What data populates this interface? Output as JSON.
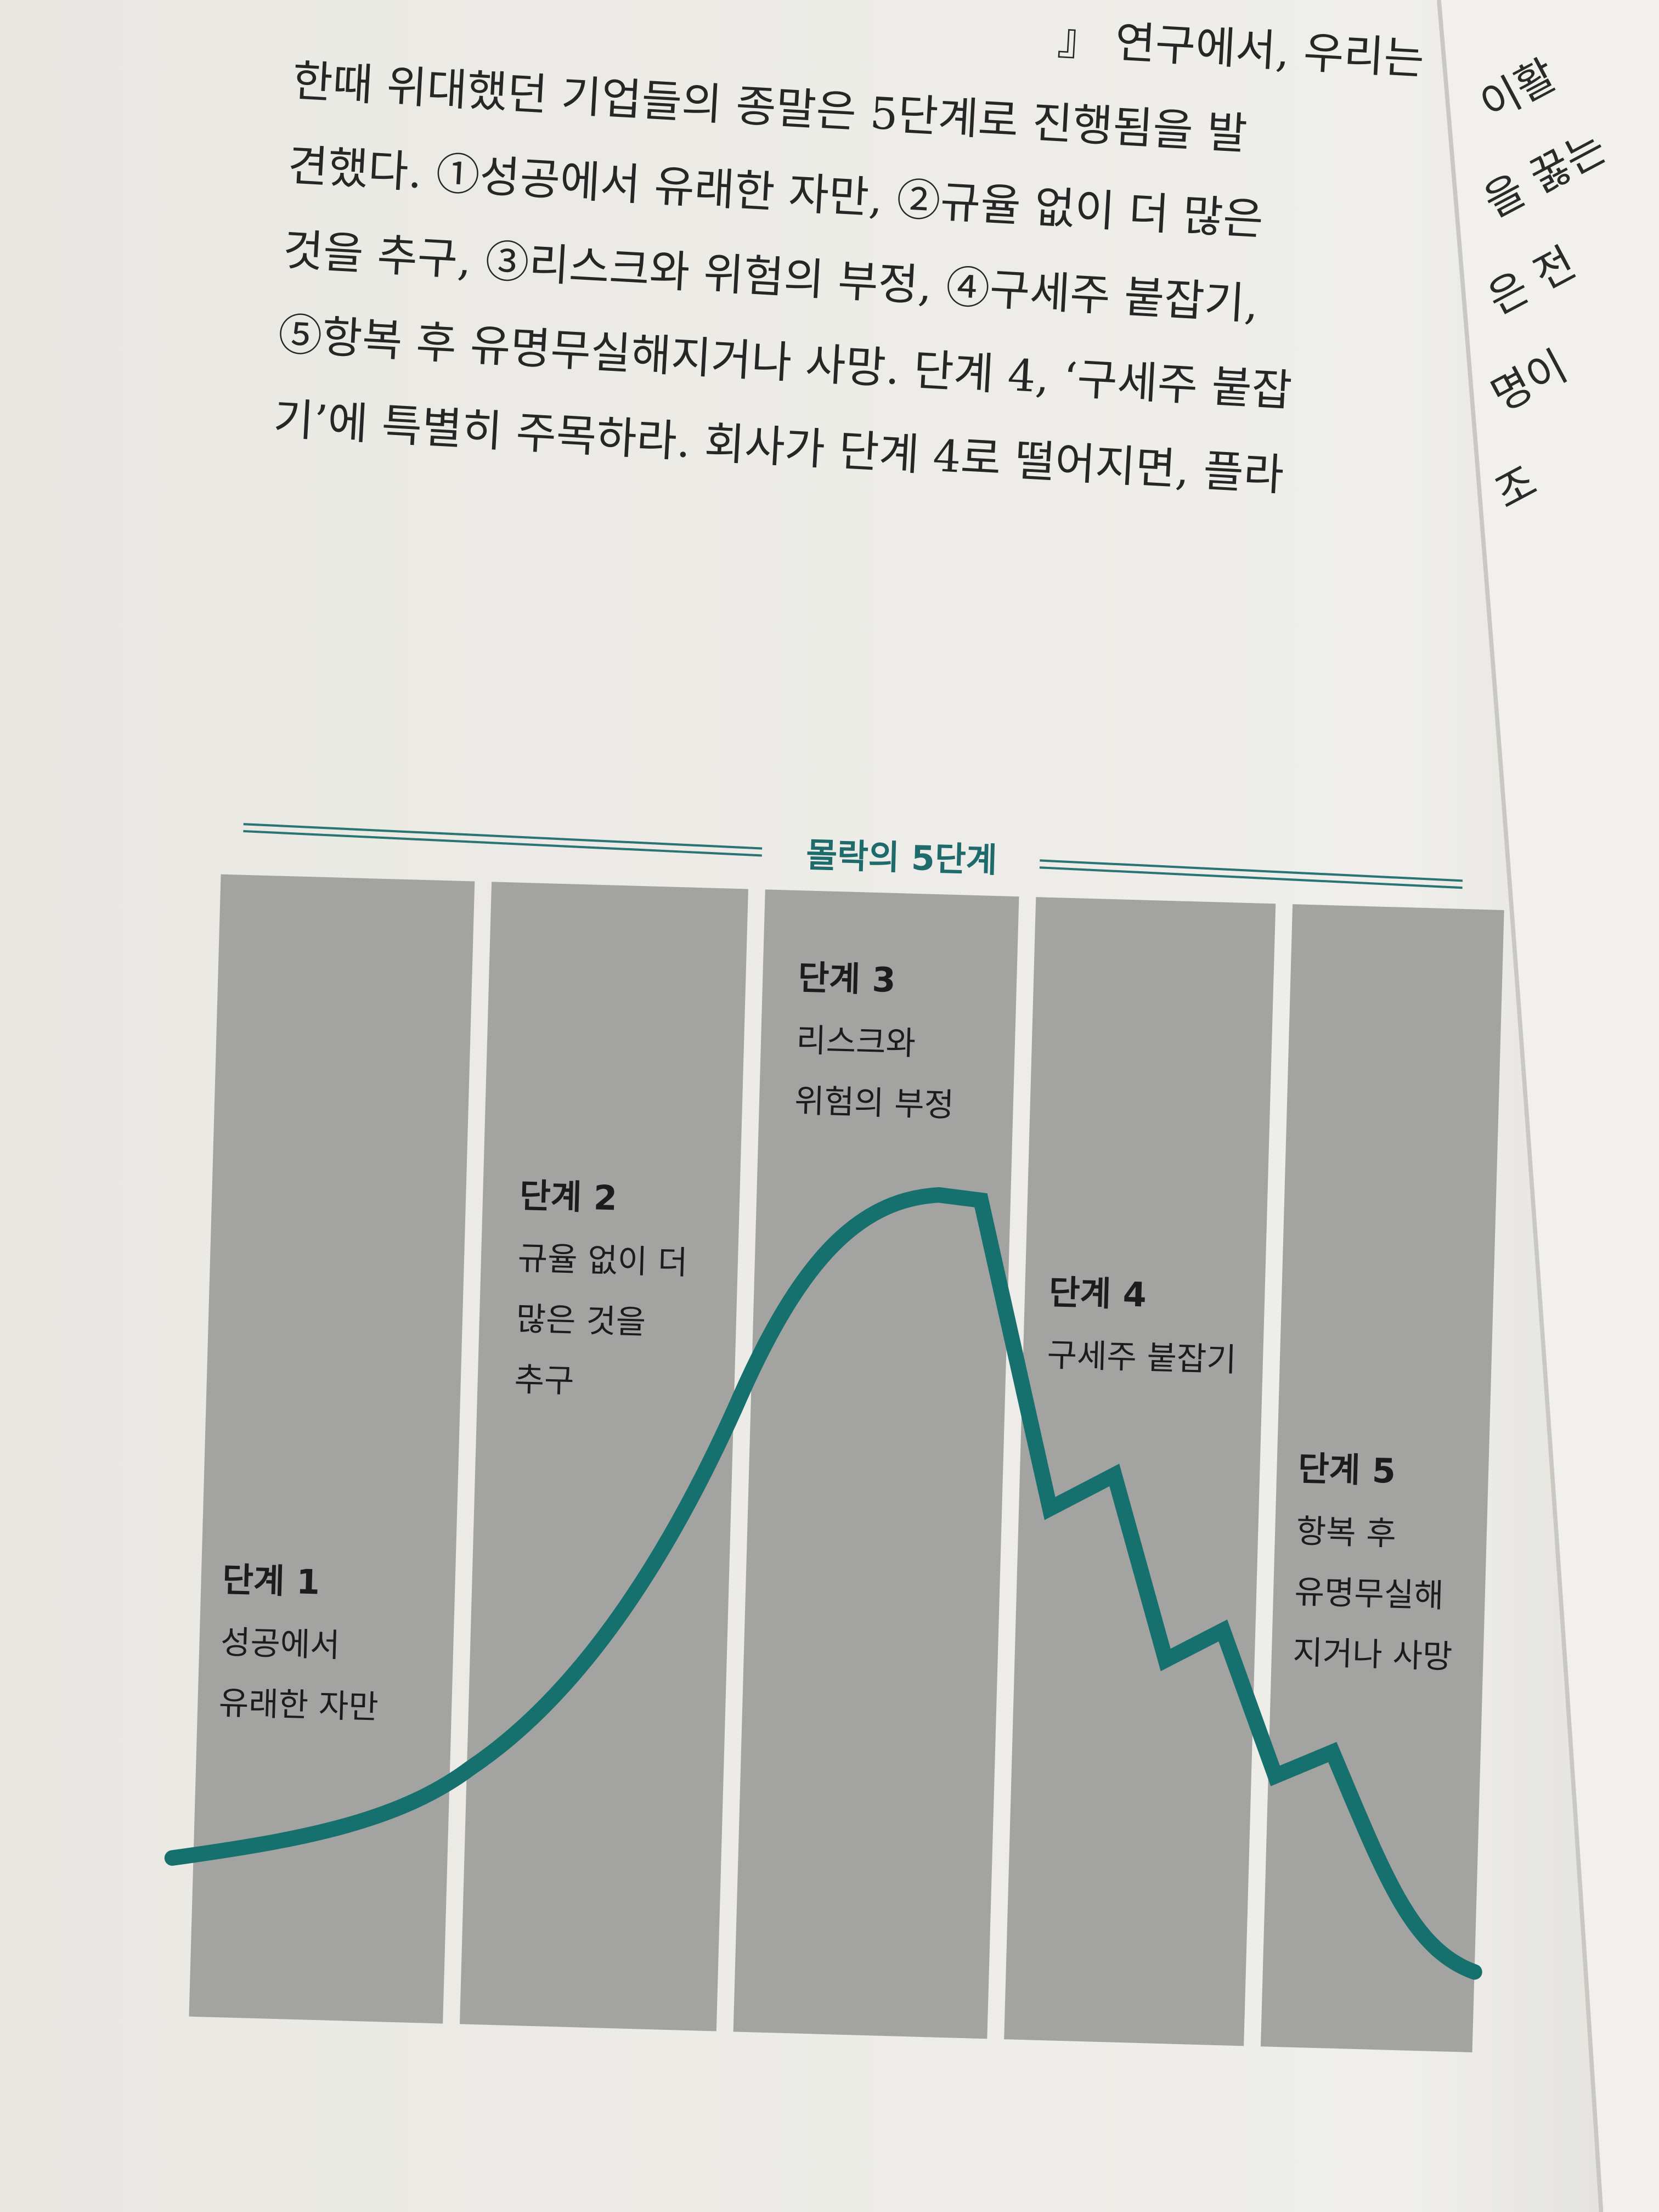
{
  "paragraph": {
    "lines": [
      "』 연구에서, 우리는",
      "한때 위대했던 기업들의 종말은 5단계로 진행됨을 발",
      "견했다. ①성공에서 유래한 자만, ②규율 없이 더 많은",
      "것을 추구, ③리스크와 위험의 부정, ④구세주 붙잡기,",
      "⑤항복 후 유명무실해지거나 사망. 단계 4, ‘구세주 붙잡",
      "기’에 특별히 주목하라. 회사가 단계 4로 떨어지면, 플라"
    ]
  },
  "facing_page": {
    "lines": [
      "이활",
      "을 꿇는",
      "은 전",
      "명이",
      "조"
    ]
  },
  "diagram": {
    "title": "몰락의 5단계",
    "stages": [
      {
        "label": "단계 1",
        "description": [
          "성공에서",
          "유래한 자만"
        ]
      },
      {
        "label": "단계 2",
        "description": [
          "규율 없이 더",
          "많은 것을",
          "추구"
        ]
      },
      {
        "label": "단계 3",
        "description": [
          "리스크와",
          "위험의 부정"
        ]
      },
      {
        "label": "단계 4",
        "description": [
          "구세주 붙잡기"
        ]
      },
      {
        "label": "단계 5",
        "description": [
          "항복 후",
          "유명무실해",
          "지거나 사망"
        ]
      }
    ]
  }
}
